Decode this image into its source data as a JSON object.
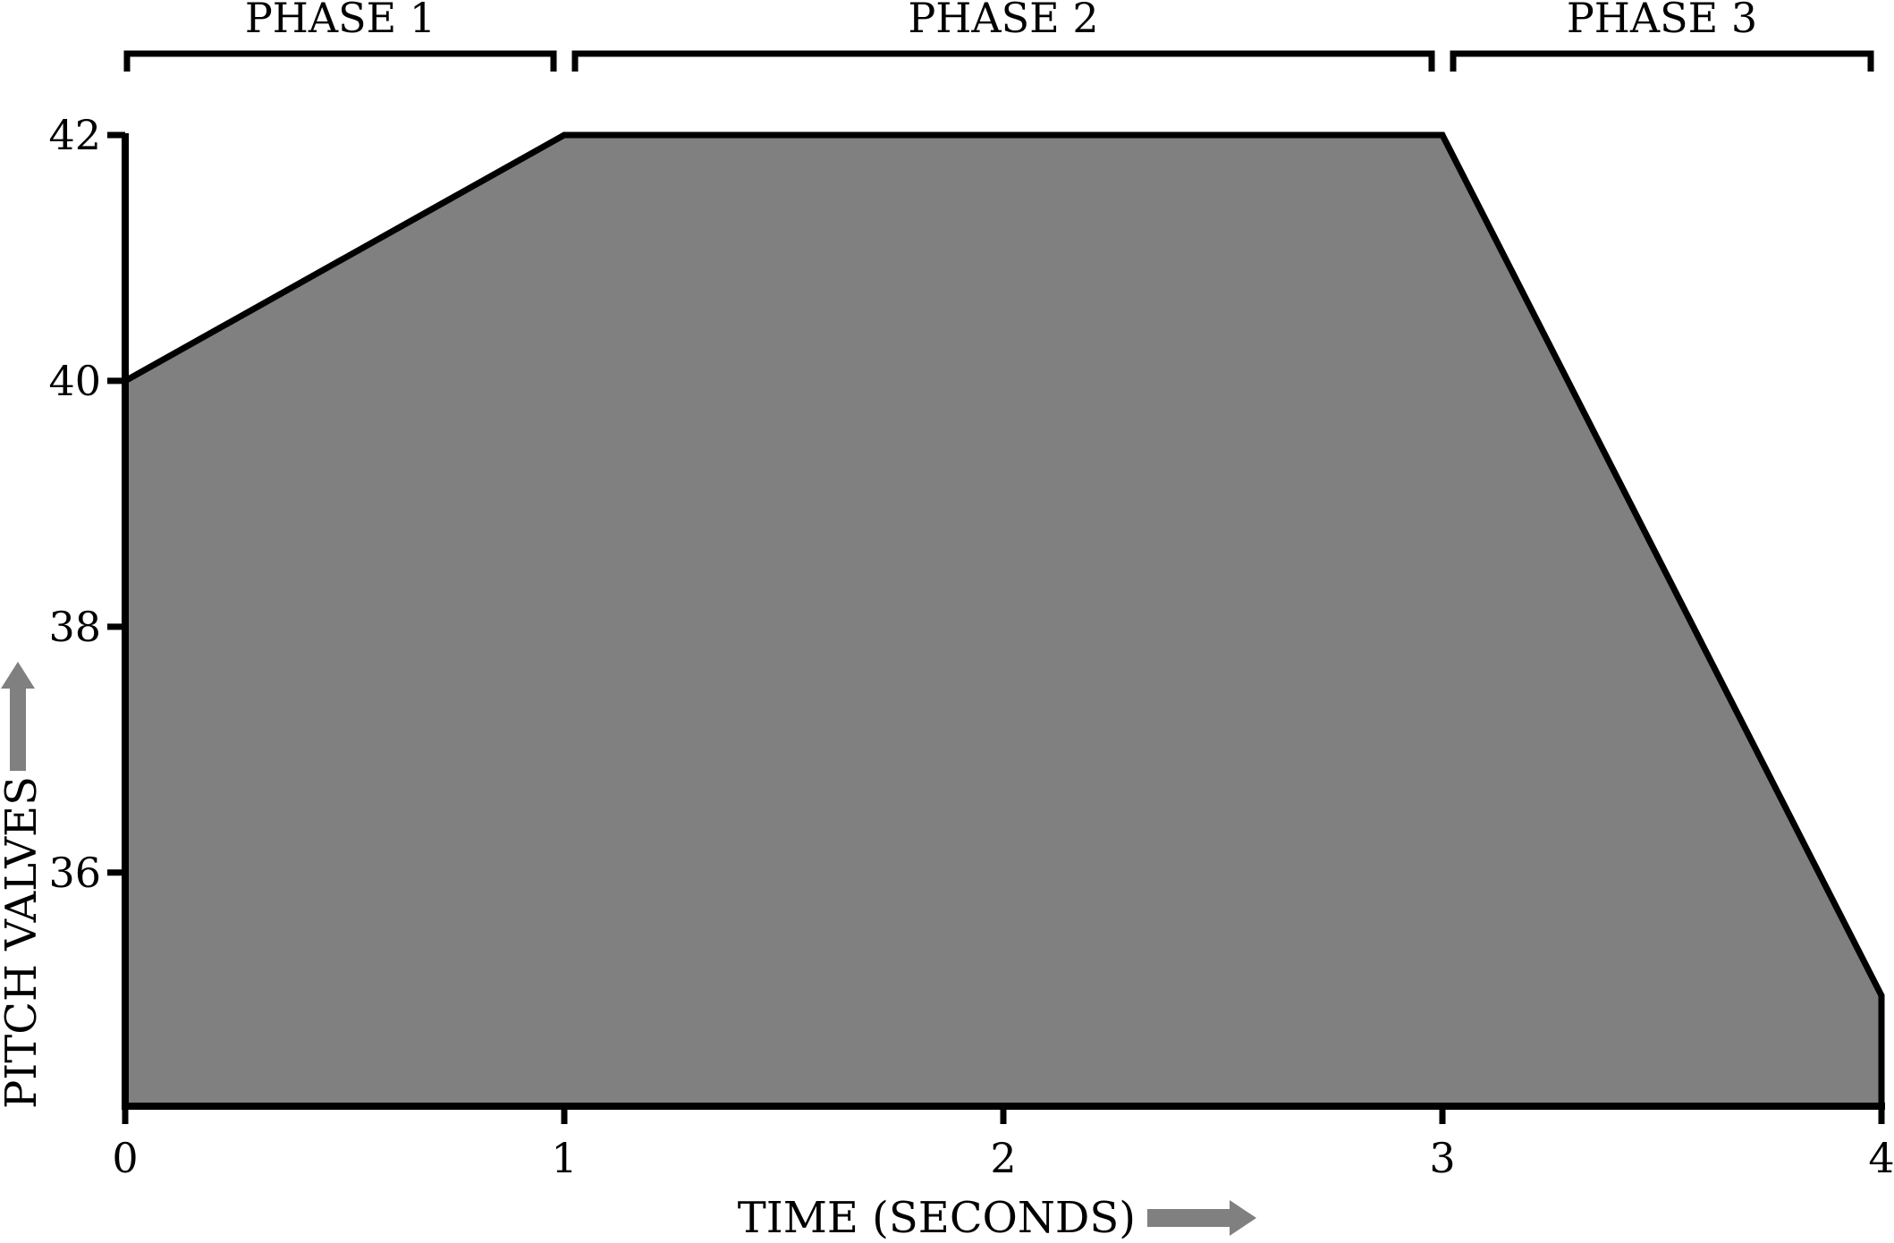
{
  "chart_data": {
    "type": "area",
    "xlabel": "TIME (SECONDS)",
    "ylabel": "PITCH VALVES",
    "x_ticks": [
      "0",
      "1",
      "2",
      "3",
      "4"
    ],
    "y_ticks": [
      "36",
      "38",
      "40",
      "42"
    ],
    "xlim": [
      0,
      4
    ],
    "ylim": [
      34.1,
      42
    ],
    "grid": false,
    "series": [
      {
        "points": [
          {
            "x": 0,
            "y": 40
          },
          {
            "x": 1,
            "y": 42
          },
          {
            "x": 3,
            "y": 42
          },
          {
            "x": 4,
            "y": 35
          }
        ]
      }
    ],
    "phases": [
      {
        "label": "PHASE 1",
        "start": 0,
        "end": 1
      },
      {
        "label": "PHASE 2",
        "start": 1,
        "end": 3
      },
      {
        "label": "PHASE 3",
        "start": 3,
        "end": 4
      }
    ]
  },
  "colors": {
    "fill": "#808080",
    "stroke": "#000000",
    "arrow": "#808080"
  }
}
